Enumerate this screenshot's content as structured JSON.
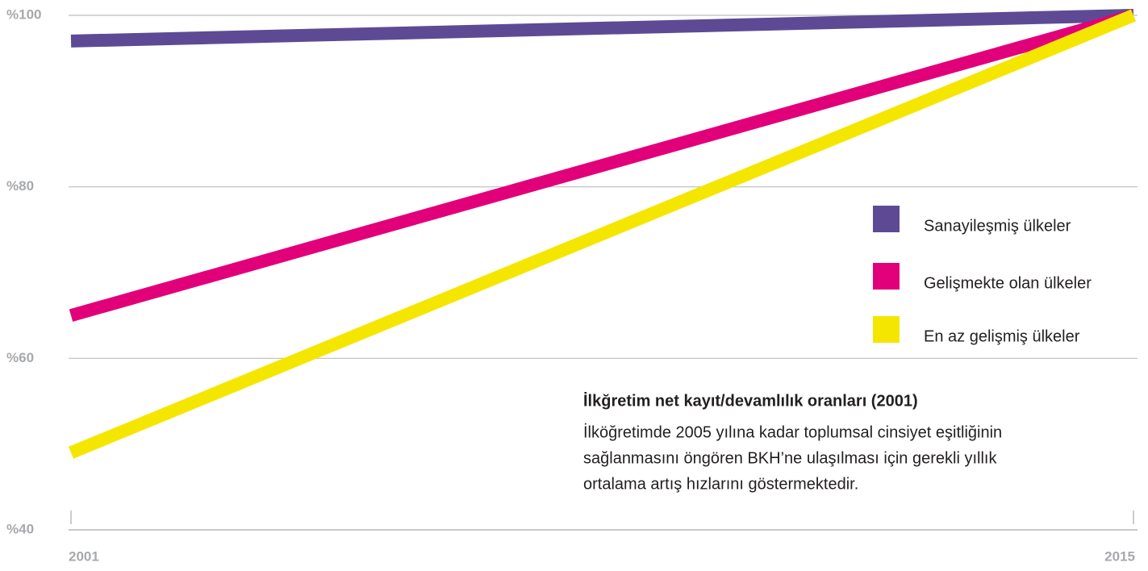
{
  "chart_data": {
    "type": "line",
    "x": [
      2001,
      2015
    ],
    "xlim": [
      2001,
      2015
    ],
    "xticks": [
      2001,
      2015
    ],
    "ylim": [
      40,
      100
    ],
    "yticks": [
      {
        "value": 40,
        "label": "%40"
      },
      {
        "value": 60,
        "label": "%60"
      },
      {
        "value": 80,
        "label": "%80"
      },
      {
        "value": 100,
        "label": "%100"
      }
    ],
    "grid": true,
    "legend": "right",
    "series": [
      {
        "name": "Sanayileşmiş ülkeler",
        "color": "#5e4a94",
        "values": [
          97,
          100
        ]
      },
      {
        "name": "Gelişmekte olan ülkeler",
        "color": "#e2007a",
        "values": [
          65,
          100
        ]
      },
      {
        "name": "En az gelişmiş ülkeler",
        "color": "#f5e600",
        "values": [
          49,
          100
        ]
      }
    ],
    "annotation": {
      "title": "İlkğretim net kayıt/devamlılık oranları (2001)",
      "lines": [
        "İlköğretimde 2005 yılına kadar toplumsal cinsiyet eşitliğinin",
        "sağlanmasını öngören BKH’ne ulaşılması için gerekli yıllık",
        "ortalama artış hızlarını göstermektedir."
      ]
    }
  }
}
